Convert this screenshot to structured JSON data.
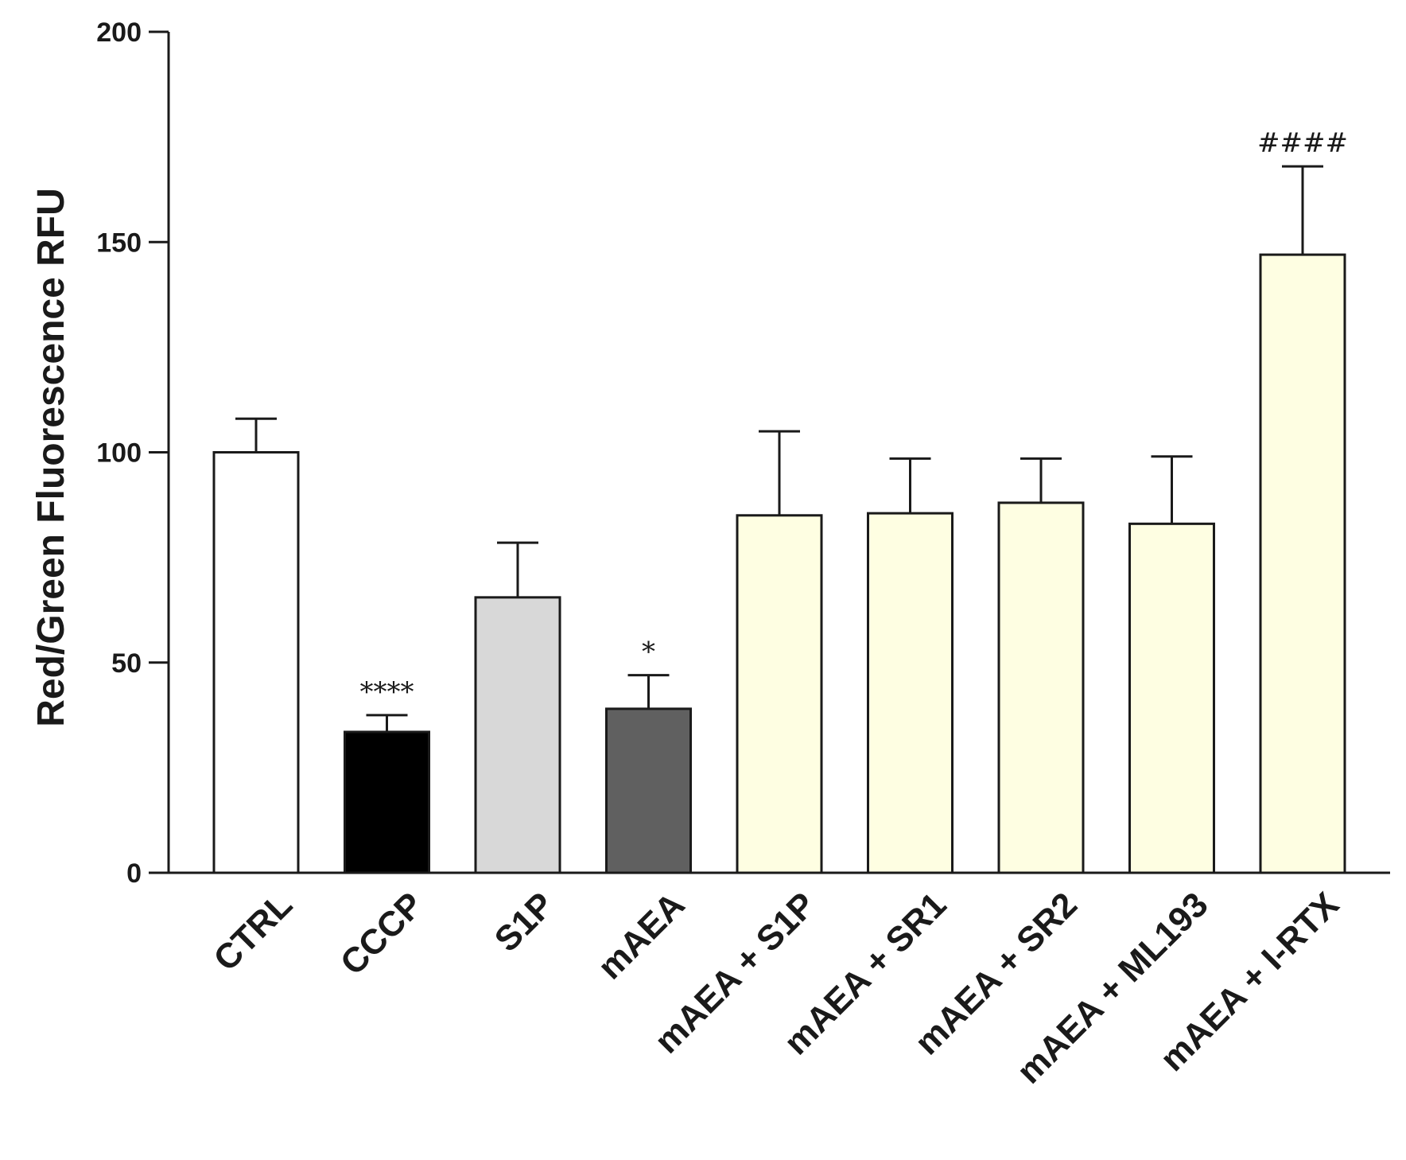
{
  "chart_data": {
    "type": "bar",
    "title": "",
    "xlabel": "",
    "ylabel": "Red/Green Fluorescence RFU",
    "ylim": [
      0,
      200
    ],
    "yticks": [
      0,
      50,
      100,
      150,
      200
    ],
    "grid": false,
    "legend": "none",
    "categories": [
      "CTRL",
      "CCCP",
      "S1P",
      "mAEA",
      "mAEA + S1P",
      "mAEA + SR1",
      "mAEA + SR2",
      "mAEA + ML193",
      "mAEA + I-RTX"
    ],
    "values": [
      100,
      33.5,
      65.5,
      39,
      85,
      85.5,
      88,
      83,
      147
    ],
    "error_upper": [
      108,
      37.5,
      78.5,
      47,
      105,
      98.5,
      98.5,
      99,
      168
    ],
    "colors": [
      "#ffffff",
      "#000000",
      "#d8d8d8",
      "#606060",
      "#fefee2",
      "#fefee2",
      "#fefee2",
      "#fefee2",
      "#fefee2"
    ],
    "annotations": [
      "",
      "****",
      "",
      "*",
      "",
      "",
      "",
      "",
      "####"
    ]
  }
}
